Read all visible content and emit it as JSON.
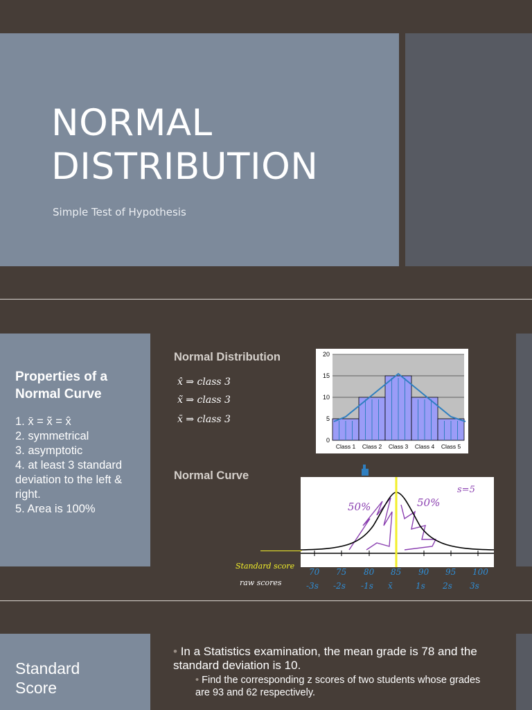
{
  "slide1": {
    "title_line1": "NORMAL",
    "title_line2": "DISTRIBUTION",
    "subtitle": "Simple Test of Hypothesis"
  },
  "slide2": {
    "heading": "Properties of a Normal Curve",
    "properties": [
      "1. x̄ = x̃ = x̂",
      "2. symmetrical",
      "3. asymptotic",
      "4. at least 3 standard deviation to the left & right.",
      "5. Area is 100%"
    ],
    "normal_distribution_label": "Normal Distribution",
    "normal_curve_label": "Normal Curve",
    "handwritten_notes": [
      "x̂ ⇒ class 3",
      "x̃ ⇒ class 3",
      "x̄ ⇒ class 3"
    ],
    "curve_annotations": {
      "left_pct": "50%",
      "right_pct": "50%",
      "s_value": "s=5",
      "standard_score_label": "Standard score",
      "raw_scores_label": "raw scores",
      "raw_scores": [
        "70",
        "75",
        "80",
        "85",
        "90",
        "95",
        "100"
      ],
      "std_scores": [
        "-3s",
        "-2s",
        "-1s",
        "x̄",
        "1s",
        "2s",
        "3s"
      ]
    }
  },
  "chart_data": {
    "type": "bar",
    "categories": [
      "Class 1",
      "Class 2",
      "Class 3",
      "Class 4",
      "Class 5"
    ],
    "values": [
      5,
      10,
      15,
      10,
      5
    ],
    "ylim": [
      0,
      20
    ],
    "yticks": [
      0,
      5,
      10,
      15,
      20
    ],
    "title": "",
    "xlabel": "",
    "ylabel": "",
    "grid": true,
    "colors": {
      "bar": "#9b9cf7",
      "bar_edge": "#000000",
      "plot_bg": "#c0c0c0",
      "freehand": "#2f7fc0"
    }
  },
  "slide3": {
    "heading_line1": "Standard",
    "heading_line2": "Score",
    "bullet1": "In a Statistics examination, the mean grade is 78 and the standard deviation is 10.",
    "bullet2": "Find the corresponding z scores of two students whose grades are 93 and 62 respectively."
  }
}
